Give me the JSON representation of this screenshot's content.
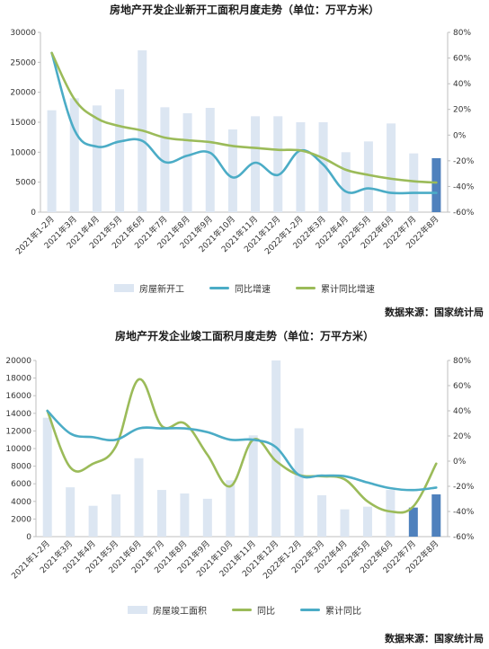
{
  "source_text": "数据来源：国家统计局",
  "colors": {
    "bar": "#dce6f2",
    "bar_highlight": "#4f81bd",
    "teal": "#4bacc6",
    "green": "#9bbb59"
  },
  "chart_data": [
    {
      "type": "bar",
      "title": "房地产开发企业新开工面积月度走势（单位：万平方米）",
      "categories": [
        "2021年1-2月",
        "2021年3月",
        "2021年4月",
        "2021年5月",
        "2021年6月",
        "2021年7月",
        "2021年8月",
        "2021年9月",
        "2021年10月",
        "2021年11月",
        "2021年12月",
        "2022年1-2月",
        "2022年3月",
        "2022年4月",
        "2022年5月",
        "2022年6月",
        "2022年7月",
        "2022年8月"
      ],
      "ylim_left": [
        0,
        30000
      ],
      "yticks_left": [
        "0",
        "5000",
        "10000",
        "15000",
        "20000",
        "25000",
        "30000"
      ],
      "ylim_right": [
        -60,
        80
      ],
      "yticks_right": [
        "-60%",
        "-40%",
        "-20%",
        "0%",
        "20%",
        "40%",
        "60%",
        "80%"
      ],
      "highlight_last": 1,
      "legend": [
        "房屋新开工",
        "同比增速",
        "累计同比增速"
      ],
      "series": [
        {
          "name": "房屋新开工",
          "axis": "left",
          "kind": "bar",
          "values": [
            17000,
            19000,
            17800,
            20500,
            27000,
            17500,
            16500,
            17400,
            13800,
            16000,
            16000,
            15000,
            15000,
            10000,
            11800,
            14800,
            9800,
            9000
          ]
        },
        {
          "name": "同比增速",
          "axis": "right",
          "kind": "line",
          "color": "#4bacc6",
          "values": [
            64.0,
            4.0,
            -9.0,
            -5.0,
            -4.5,
            -21.0,
            -16.0,
            -13.8,
            -33.0,
            -21.5,
            -31.0,
            -12.0,
            -23.0,
            -44.0,
            -41.5,
            -45.0,
            -45.0,
            -45.0
          ]
        },
        {
          "name": "累计同比增速",
          "axis": "right",
          "kind": "line",
          "color": "#9bbb59",
          "values": [
            64.0,
            28.0,
            13.0,
            7.0,
            3.5,
            -2.0,
            -4.0,
            -5.5,
            -8.5,
            -10.0,
            -11.5,
            -12.0,
            -18.0,
            -27.0,
            -31.0,
            -34.0,
            -36.0,
            -37.0
          ]
        }
      ]
    },
    {
      "type": "bar",
      "title": "房地产开发企业竣工面积月度走势（单位：万平方米）",
      "categories": [
        "2021年1-2月",
        "2021年3月",
        "2021年4月",
        "2021年5月",
        "2021年6月",
        "2021年7月",
        "2021年8月",
        "2021年9月",
        "2021年10月",
        "2021年11月",
        "2021年12月",
        "2022年1-2月",
        "2022年3月",
        "2022年4月",
        "2022年5月",
        "2022年6月",
        "2022年7月",
        "2022年8月"
      ],
      "ylim_left": [
        0,
        20000
      ],
      "yticks_left": [
        "0",
        "2000",
        "4000",
        "6000",
        "8000",
        "10000",
        "12000",
        "14000",
        "16000",
        "18000",
        "20000"
      ],
      "ylim_right": [
        -60,
        80
      ],
      "yticks_right": [
        "-60%",
        "-40%",
        "-20%",
        "0%",
        "20%",
        "40%",
        "60%",
        "80%"
      ],
      "highlight_last": 2,
      "legend": [
        "房屋竣工面积",
        "同比",
        "累计同比"
      ],
      "series": [
        {
          "name": "房屋竣工面积",
          "axis": "left",
          "kind": "bar",
          "values": [
            13500,
            5600,
            3500,
            4800,
            8900,
            5300,
            4900,
            4300,
            6400,
            11500,
            20000,
            12300,
            4700,
            3100,
            3400,
            5300,
            3300,
            4800
          ]
        },
        {
          "name": "同比",
          "axis": "right",
          "kind": "line",
          "color": "#9bbb59",
          "values": [
            40.0,
            -5.0,
            -2.0,
            12.0,
            65.0,
            28.0,
            30.0,
            5.0,
            -20.0,
            17.0,
            0.0,
            -11.0,
            -12.0,
            -14.5,
            -32.0,
            -40.0,
            -36.0,
            -2.0
          ]
        },
        {
          "name": "累计同比",
          "axis": "right",
          "kind": "line",
          "color": "#4bacc6",
          "values": [
            40.0,
            22.0,
            19.0,
            17.0,
            26.0,
            26.0,
            26.0,
            23.0,
            17.0,
            17.0,
            11.0,
            -11.0,
            -11.5,
            -12.0,
            -17.0,
            -21.5,
            -23.0,
            -21.0
          ]
        }
      ]
    }
  ]
}
